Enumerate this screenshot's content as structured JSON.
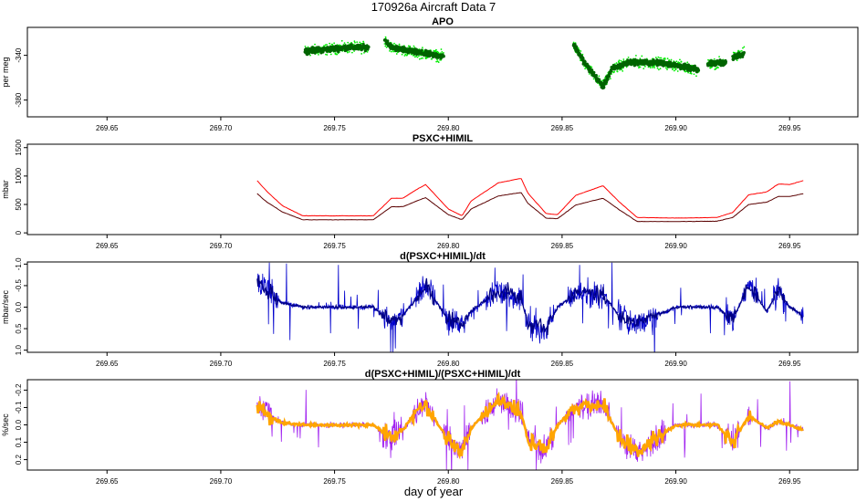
{
  "figure": {
    "title": "170926a   Aircraft Data 7",
    "xlabel": "day of year"
  },
  "colors": {
    "apo_dark": "#006400",
    "apo_light": "#00ee00",
    "psxc_upper": "#ff0000",
    "psxc_lower": "#5a0000",
    "ddt": "#0000cd",
    "ddt_points": "#000080",
    "rel_purple": "#a020f0",
    "rel_orange": "#ffa500"
  },
  "chart_data": [
    {
      "type": "scatter",
      "title": "APO",
      "ylabel": "per meg",
      "xlim": [
        269.615,
        269.98
      ],
      "ylim": [
        -395,
        -315
      ],
      "y_reversed": false,
      "grid": false,
      "xticks": [
        "269.65",
        "269.70",
        "269.75",
        "269.80",
        "269.85",
        "269.90",
        "269.95"
      ],
      "yticks": [
        {
          "value": -340,
          "label": "-340"
        },
        {
          "value": -380,
          "label": "-380"
        }
      ],
      "segments": [
        {
          "x": [
            269.737,
            269.745,
            269.755,
            269.765
          ],
          "y": [
            -336,
            -335,
            -333,
            -333
          ]
        },
        {
          "x": [
            269.772,
            269.775,
            269.785,
            269.798
          ],
          "y": [
            -326,
            -333,
            -337,
            -341
          ]
        },
        {
          "x": [
            269.855,
            269.86,
            269.865,
            269.868,
            269.872,
            269.88,
            269.895,
            269.91
          ],
          "y": [
            -330,
            -347,
            -360,
            -368,
            -352,
            -346,
            -347,
            -353
          ]
        },
        {
          "x": [
            269.914,
            269.922
          ],
          "y": [
            -348,
            -346
          ]
        },
        {
          "x": [
            269.925,
            269.93
          ],
          "y": [
            -342,
            -338
          ]
        }
      ]
    },
    {
      "type": "line",
      "title": "PSXC+HIMIL",
      "ylabel": "mbar",
      "xlim": [
        269.615,
        269.98
      ],
      "ylim": [
        -30,
        1560
      ],
      "y_reversed": false,
      "grid": false,
      "xticks": [
        "269.65",
        "269.70",
        "269.75",
        "269.80",
        "269.85",
        "269.90",
        "269.95"
      ],
      "yticks": [
        {
          "value": 0,
          "label": "0"
        },
        {
          "value": 500,
          "label": "500"
        },
        {
          "value": 1000,
          "label": "1000"
        },
        {
          "value": 1500,
          "label": "1500"
        }
      ],
      "series": [
        {
          "x": [
            269.716,
            269.72,
            269.727,
            269.736,
            269.767,
            269.775,
            269.78,
            269.786,
            269.79,
            269.8,
            269.806,
            269.81,
            269.822,
            269.832,
            269.835,
            269.843,
            269.848,
            269.856,
            269.868,
            269.875,
            269.883,
            269.9,
            269.918,
            269.925,
            269.932,
            269.94,
            269.945,
            269.95,
            269.956
          ],
          "y": [
            920,
            740,
            480,
            300,
            300,
            610,
            610,
            760,
            850,
            420,
            300,
            560,
            880,
            960,
            700,
            340,
            320,
            660,
            830,
            550,
            270,
            260,
            270,
            360,
            670,
            720,
            860,
            850,
            920
          ]
        },
        {
          "x": [
            269.716,
            269.72,
            269.727,
            269.736,
            269.767,
            269.775,
            269.78,
            269.786,
            269.79,
            269.8,
            269.806,
            269.81,
            269.822,
            269.832,
            269.835,
            269.843,
            269.848,
            269.856,
            269.868,
            269.875,
            269.883,
            269.9,
            269.918,
            269.925,
            269.932,
            269.94,
            269.945,
            269.95,
            269.956
          ],
          "y": [
            690,
            550,
            370,
            230,
            230,
            460,
            460,
            560,
            620,
            320,
            230,
            420,
            650,
            710,
            520,
            260,
            250,
            490,
            610,
            410,
            200,
            200,
            205,
            270,
            500,
            540,
            640,
            640,
            690
          ]
        }
      ]
    },
    {
      "type": "line",
      "title": "d(PSXC+HIMIL)/dt",
      "ylabel": "mbar/sec",
      "xlim": [
        269.615,
        269.98
      ],
      "ylim": [
        -1.05,
        1.05
      ],
      "y_reversed": true,
      "grid": false,
      "xticks": [
        "269.65",
        "269.70",
        "269.75",
        "269.80",
        "269.85",
        "269.90",
        "269.95"
      ],
      "yticks": [
        {
          "value": -1.0,
          "label": "-1.0"
        },
        {
          "value": -0.5,
          "label": "-0.5"
        },
        {
          "value": 0.0,
          "label": "0.0"
        },
        {
          "value": 0.5,
          "label": "0.5"
        },
        {
          "value": 1.0,
          "label": "1.0"
        }
      ],
      "x": [
        269.716,
        269.72,
        269.727,
        269.736,
        269.767,
        269.775,
        269.78,
        269.786,
        269.79,
        269.8,
        269.806,
        269.81,
        269.822,
        269.832,
        269.835,
        269.843,
        269.848,
        269.856,
        269.868,
        269.875,
        269.883,
        269.9,
        269.918,
        269.925,
        269.932,
        269.94,
        269.945,
        269.95,
        269.956
      ],
      "y": [
        -0.6,
        -0.4,
        -0.1,
        0.0,
        0.0,
        0.35,
        0.2,
        -0.2,
        -0.5,
        0.3,
        0.4,
        0.1,
        -0.4,
        -0.2,
        0.4,
        0.5,
        0.0,
        -0.3,
        -0.3,
        0.2,
        0.4,
        0.0,
        0.0,
        0.3,
        -0.5,
        0.1,
        -0.4,
        0.0,
        0.2
      ]
    },
    {
      "type": "line",
      "title": "d(PSXC+HIMIL)/(PSXC+HIMIL)/dt",
      "ylabel": "%/sec",
      "xlim": [
        269.615,
        269.98
      ],
      "ylim": [
        -0.26,
        0.26
      ],
      "y_reversed": true,
      "grid": false,
      "xticks": [
        "269.65",
        "269.70",
        "269.75",
        "269.80",
        "269.85",
        "269.90",
        "269.95"
      ],
      "yticks": [
        {
          "value": -0.2,
          "label": "-0.2"
        },
        {
          "value": -0.1,
          "label": "-0.1"
        },
        {
          "value": 0.0,
          "label": "0.0"
        },
        {
          "value": 0.1,
          "label": "0.1"
        },
        {
          "value": 0.2,
          "label": "0.2"
        }
      ],
      "x": [
        269.716,
        269.72,
        269.727,
        269.736,
        269.767,
        269.775,
        269.78,
        269.786,
        269.79,
        269.8,
        269.806,
        269.81,
        269.822,
        269.832,
        269.835,
        269.843,
        269.848,
        269.856,
        269.868,
        269.875,
        269.883,
        269.9,
        269.918,
        269.925,
        269.932,
        269.94,
        269.945,
        269.95,
        269.956
      ],
      "y": [
        -0.12,
        -0.06,
        -0.01,
        0.0,
        0.0,
        0.08,
        0.03,
        -0.08,
        -0.12,
        0.09,
        0.15,
        0.02,
        -0.14,
        -0.07,
        0.08,
        0.15,
        0.0,
        -0.1,
        -0.12,
        0.07,
        0.16,
        0.0,
        0.0,
        0.1,
        -0.05,
        0.02,
        -0.02,
        0.0,
        0.03
      ]
    }
  ]
}
